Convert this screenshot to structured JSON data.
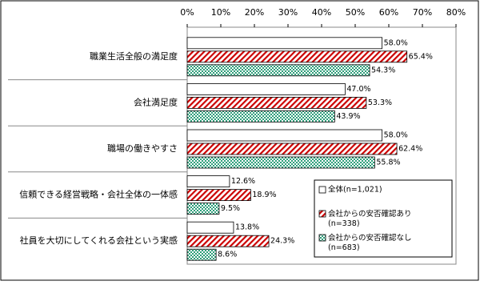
{
  "chart_data": {
    "type": "hbar",
    "categories": [
      "職業生活全般の満足度",
      "会社満足度",
      "職場の働きやすさ",
      "信頼できる経営戦略・会社全体の一体感",
      "社員を大切にしてくれる会社という実感"
    ],
    "series": [
      {
        "name": "全体(n=1,021)",
        "color": "#ffffff",
        "values": [
          58.0,
          47.0,
          58.0,
          12.6,
          13.8
        ],
        "value_labels": [
          "58.0%",
          "47.0%",
          "58.0%",
          "12.6%",
          "13.8%"
        ]
      },
      {
        "name": "会社からの安否確認あり(n=338)",
        "color": "#cc0000",
        "values": [
          65.4,
          53.3,
          62.4,
          18.9,
          24.3
        ],
        "value_labels": [
          "65.4%",
          "53.3%",
          "62.4%",
          "18.9%",
          "24.3%"
        ]
      },
      {
        "name": "会社からの安否確認なし(n=683)",
        "color": "#2e9e7a",
        "values": [
          54.3,
          43.9,
          55.8,
          9.5,
          8.6
        ],
        "value_labels": [
          "54.3%",
          "43.9%",
          "55.8%",
          "9.5%",
          "8.6%"
        ]
      }
    ],
    "xlim": [
      0,
      80
    ],
    "xticks": [
      {
        "value": 0,
        "label": "0%"
      },
      {
        "value": 10,
        "label": "10%"
      },
      {
        "value": 20,
        "label": "20%"
      },
      {
        "value": 30,
        "label": "30%"
      },
      {
        "value": 40,
        "label": "40%"
      },
      {
        "value": 50,
        "label": "50%"
      },
      {
        "value": 60,
        "label": "60%"
      },
      {
        "value": 70,
        "label": "70%"
      },
      {
        "value": 80,
        "label": "80%"
      }
    ],
    "legend": "lower-right"
  }
}
